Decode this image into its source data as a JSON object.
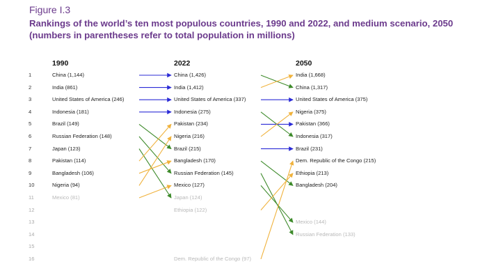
{
  "figure_label": "Figure I.3",
  "title": "Rankings of the world’s ten most populous countries, 1990 and 2022, and medium scenario, 2050 (numbers in parentheses refer to total population in millions)",
  "colors": {
    "title": "#6b3a8c",
    "same": "#2b2bd6",
    "up": "#f0b23c",
    "down": "#3d8a2a",
    "faded_text": "#b8b8b8"
  },
  "columns": {
    "c1990": {
      "header": "1990",
      "entries": [
        {
          "rank": 1,
          "label": "China (1,144)"
        },
        {
          "rank": 2,
          "label": "India (861)"
        },
        {
          "rank": 3,
          "label": "United States of America (246)"
        },
        {
          "rank": 4,
          "label": "Indonesia (181)"
        },
        {
          "rank": 5,
          "label": "Brazil (149)"
        },
        {
          "rank": 6,
          "label": "Russian Federation (148)"
        },
        {
          "rank": 7,
          "label": "Japan (123)"
        },
        {
          "rank": 8,
          "label": "Pakistan (114)"
        },
        {
          "rank": 9,
          "label": "Bangladesh (106)"
        },
        {
          "rank": 10,
          "label": "Nigeria (94)"
        },
        {
          "rank": 11,
          "label": "Mexico (81)",
          "faded": true
        }
      ]
    },
    "c2022": {
      "header": "2022",
      "entries": [
        {
          "rank": 1,
          "label": "China (1,426)"
        },
        {
          "rank": 2,
          "label": "India (1,412)"
        },
        {
          "rank": 3,
          "label": "United States of America (337)"
        },
        {
          "rank": 4,
          "label": "Indonesia (275)"
        },
        {
          "rank": 5,
          "label": "Pakistan (234)"
        },
        {
          "rank": 6,
          "label": "Nigeria (216)"
        },
        {
          "rank": 7,
          "label": "Brazil (215)"
        },
        {
          "rank": 8,
          "label": "Bangladesh (170)"
        },
        {
          "rank": 9,
          "label": "Russian Federation (145)"
        },
        {
          "rank": 10,
          "label": "Mexico (127)"
        },
        {
          "rank": 11,
          "label": "Japan (124)",
          "faded": true
        },
        {
          "rank": 12,
          "label": "Ethiopia (122)",
          "faded": true
        },
        {
          "rank": 16,
          "label": "Dem. Republic of the Congo (97)",
          "faded": true
        }
      ]
    },
    "c2050": {
      "header": "2050",
      "entries": [
        {
          "rank": 1,
          "label": "India (1,668)"
        },
        {
          "rank": 2,
          "label": "China (1,317)"
        },
        {
          "rank": 3,
          "label": "United States of America (375)"
        },
        {
          "rank": 4,
          "label": "Nigeria (375)"
        },
        {
          "rank": 5,
          "label": "Pakistan (366)"
        },
        {
          "rank": 6,
          "label": "Indonesia (317)"
        },
        {
          "rank": 7,
          "label": "Brazil (231)"
        },
        {
          "rank": 8,
          "label": "Dem. Republic of the Congo (215)"
        },
        {
          "rank": 9,
          "label": "Ethiopia (213)"
        },
        {
          "rank": 10,
          "label": "Bangladesh (204)"
        },
        {
          "rank": 13,
          "label": "Mexico (144)",
          "faded": true
        },
        {
          "rank": 14,
          "label": "Russian Federation (133)",
          "faded": true
        }
      ]
    }
  },
  "ranks": [
    1,
    2,
    3,
    4,
    5,
    6,
    7,
    8,
    9,
    10,
    11,
    12,
    13,
    14,
    15,
    16
  ],
  "transitions_1990_2022": [
    {
      "from": 1,
      "to": 1,
      "kind": "same"
    },
    {
      "from": 2,
      "to": 2,
      "kind": "same"
    },
    {
      "from": 3,
      "to": 3,
      "kind": "same"
    },
    {
      "from": 4,
      "to": 4,
      "kind": "same"
    },
    {
      "from": 5,
      "to": 7,
      "kind": "down"
    },
    {
      "from": 6,
      "to": 9,
      "kind": "down"
    },
    {
      "from": 7,
      "to": 11,
      "kind": "down"
    },
    {
      "from": 8,
      "to": 5,
      "kind": "up"
    },
    {
      "from": 9,
      "to": 8,
      "kind": "up"
    },
    {
      "from": 10,
      "to": 6,
      "kind": "up"
    },
    {
      "from": 11,
      "to": 10,
      "kind": "up"
    }
  ],
  "transitions_2022_2050": [
    {
      "from": 1,
      "to": 2,
      "kind": "down"
    },
    {
      "from": 2,
      "to": 1,
      "kind": "up"
    },
    {
      "from": 3,
      "to": 3,
      "kind": "same"
    },
    {
      "from": 4,
      "to": 6,
      "kind": "down"
    },
    {
      "from": 5,
      "to": 5,
      "kind": "same"
    },
    {
      "from": 6,
      "to": 4,
      "kind": "up"
    },
    {
      "from": 7,
      "to": 7,
      "kind": "same"
    },
    {
      "from": 8,
      "to": 10,
      "kind": "down"
    },
    {
      "from": 9,
      "to": 14,
      "kind": "down"
    },
    {
      "from": 10,
      "to": 13,
      "kind": "down"
    },
    {
      "from": 12,
      "to": 9,
      "kind": "up"
    },
    {
      "from": 16,
      "to": 8,
      "kind": "up"
    }
  ]
}
